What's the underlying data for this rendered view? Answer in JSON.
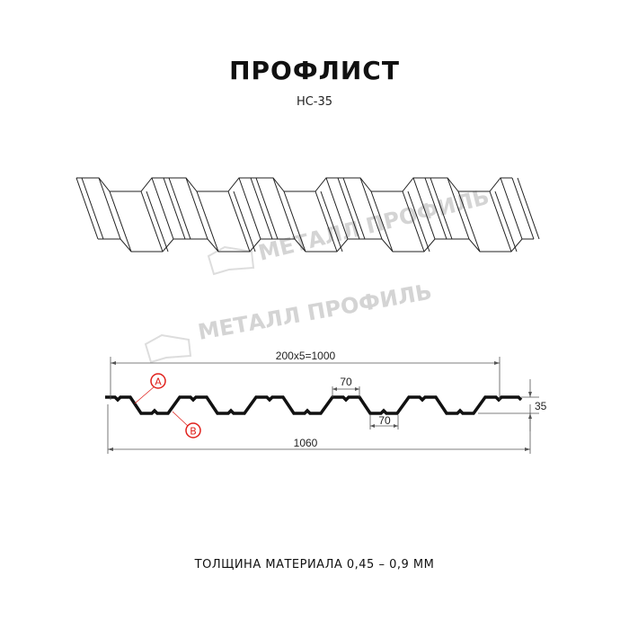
{
  "header": {
    "title": "ПРОФЛИСТ",
    "model": "НС-35"
  },
  "watermark": {
    "text": "МЕТАЛЛ ПРОФИЛЬ"
  },
  "section": {
    "dimensions": {
      "pitch_total": "200x5=1000",
      "crest_width": "70",
      "trough_width": "70",
      "height": "35",
      "total_width": "1060"
    },
    "markers": {
      "a": "A",
      "b": "B"
    },
    "marker_color": "#e0201b"
  },
  "footer": {
    "thickness": "ТОЛЩИНА МАТЕРИАЛА 0,45 – 0,9 ММ"
  }
}
